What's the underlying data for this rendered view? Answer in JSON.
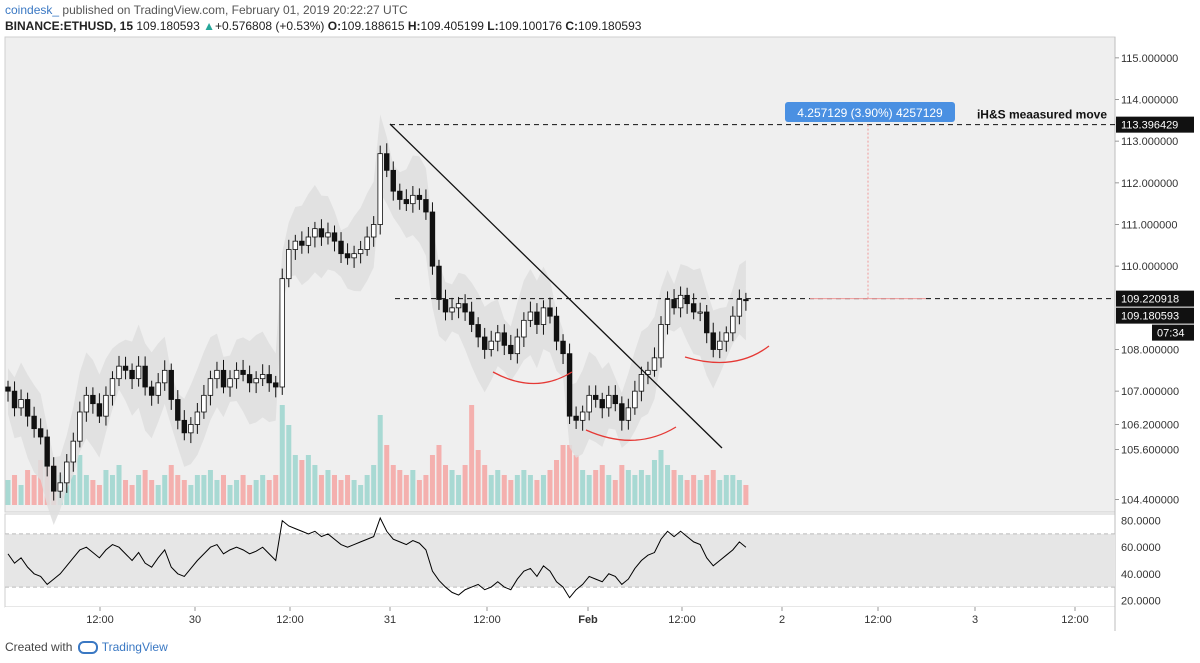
{
  "header": {
    "author": "coindesk_",
    "published": "published on TradingView.com, February 01, 2019 20:22:27 UTC",
    "symbol": "BINANCE:ETHUSD, 15",
    "last": "109.180593",
    "arrow": "▲",
    "change": "+0.576808 (+0.53%)",
    "o_label": "O:",
    "o": "109.188615",
    "h_label": "H:",
    "h": "109.405199",
    "l_label": "L:",
    "l": "109.100176",
    "c_label": "C:",
    "c": "109.180593"
  },
  "footer": {
    "created_with": "Created with",
    "brand": "TradingView"
  },
  "colors": {
    "up": "#26a69a",
    "down": "#ef5350",
    "price_line": "#000000",
    "rsi_line": "#000000",
    "band": "#dcdcdc",
    "accent": "#4a90e2"
  },
  "chart_data": {
    "type": "candlestick",
    "symbol": "BINANCE:ETHUSD",
    "interval": "15",
    "y_axis_ticks": [
      "115.000000",
      "114.000000",
      "113.000000",
      "112.000000",
      "111.000000",
      "110.000000",
      "108.000000",
      "107.000000",
      "106.200000",
      "105.600000",
      "104.400000"
    ],
    "ylim": [
      104.1,
      115.5
    ],
    "x_axis_ticks": [
      "12:00",
      "30",
      "12:00",
      "31",
      "12:00",
      "Feb",
      "12:00",
      "2",
      "12:00",
      "3",
      "12:00"
    ],
    "price_labels": {
      "measured_target": "113.396429",
      "neckline": "109.220918",
      "last_price": "109.180593",
      "countdown": "07:34"
    },
    "annotations": {
      "measure_box": "4.257129 (3.90%) 4257129",
      "measured_move_label": "iH&S meaasured move",
      "measured_target_value": 113.396429,
      "neckline_value": 109.220918
    },
    "price_series": [
      [
        0,
        107.0
      ],
      [
        1,
        106.6
      ],
      [
        2,
        106.8
      ],
      [
        3,
        106.4
      ],
      [
        4,
        106.1
      ],
      [
        5,
        105.9
      ],
      [
        6,
        105.2
      ],
      [
        7,
        104.6
      ],
      [
        8,
        104.8
      ],
      [
        9,
        105.3
      ],
      [
        10,
        105.8
      ],
      [
        11,
        106.5
      ],
      [
        12,
        106.9
      ],
      [
        13,
        106.7
      ],
      [
        14,
        106.4
      ],
      [
        15,
        106.9
      ],
      [
        16,
        107.3
      ],
      [
        17,
        107.6
      ],
      [
        18,
        107.5
      ],
      [
        19,
        107.3
      ],
      [
        20,
        107.6
      ],
      [
        21,
        107.1
      ],
      [
        22,
        106.9
      ],
      [
        23,
        107.2
      ],
      [
        24,
        107.5
      ],
      [
        25,
        106.8
      ],
      [
        26,
        106.3
      ],
      [
        27,
        106.0
      ],
      [
        28,
        106.2
      ],
      [
        29,
        106.5
      ],
      [
        30,
        106.9
      ],
      [
        31,
        107.3
      ],
      [
        32,
        107.5
      ],
      [
        33,
        107.1
      ],
      [
        34,
        107.3
      ],
      [
        35,
        107.5
      ],
      [
        36,
        107.4
      ],
      [
        37,
        107.2
      ],
      [
        38,
        107.3
      ],
      [
        39,
        107.4
      ],
      [
        40,
        107.2
      ],
      [
        41,
        107.1
      ],
      [
        42,
        109.7
      ],
      [
        43,
        110.4
      ],
      [
        44,
        110.6
      ],
      [
        45,
        110.5
      ],
      [
        46,
        110.7
      ],
      [
        47,
        110.9
      ],
      [
        48,
        110.7
      ],
      [
        49,
        110.8
      ],
      [
        50,
        110.6
      ],
      [
        51,
        110.3
      ],
      [
        52,
        110.2
      ],
      [
        53,
        110.3
      ],
      [
        54,
        110.4
      ],
      [
        55,
        110.7
      ],
      [
        56,
        111.0
      ],
      [
        57,
        112.7
      ],
      [
        58,
        112.3
      ],
      [
        59,
        111.8
      ],
      [
        60,
        111.6
      ],
      [
        61,
        111.5
      ],
      [
        62,
        111.7
      ],
      [
        63,
        111.6
      ],
      [
        64,
        111.3
      ],
      [
        65,
        110.0
      ],
      [
        66,
        109.2
      ],
      [
        67,
        108.9
      ],
      [
        68,
        109.0
      ],
      [
        69,
        109.1
      ],
      [
        70,
        108.9
      ],
      [
        71,
        108.6
      ],
      [
        72,
        108.3
      ],
      [
        73,
        108.0
      ],
      [
        74,
        108.2
      ],
      [
        75,
        108.4
      ],
      [
        76,
        108.1
      ],
      [
        77,
        107.9
      ],
      [
        78,
        108.3
      ],
      [
        79,
        108.7
      ],
      [
        80,
        108.9
      ],
      [
        81,
        108.6
      ],
      [
        82,
        109.0
      ],
      [
        83,
        108.8
      ],
      [
        84,
        108.2
      ],
      [
        85,
        107.9
      ],
      [
        86,
        106.4
      ],
      [
        87,
        106.3
      ],
      [
        88,
        106.5
      ],
      [
        89,
        106.9
      ],
      [
        90,
        106.8
      ],
      [
        91,
        106.6
      ],
      [
        92,
        106.9
      ],
      [
        93,
        106.7
      ],
      [
        94,
        106.3
      ],
      [
        95,
        106.6
      ],
      [
        96,
        107.0
      ],
      [
        97,
        107.4
      ],
      [
        98,
        107.5
      ],
      [
        99,
        107.8
      ],
      [
        100,
        108.6
      ],
      [
        101,
        109.2
      ],
      [
        102,
        109.0
      ],
      [
        103,
        109.3
      ],
      [
        104,
        109.1
      ],
      [
        105,
        108.9
      ],
      [
        106,
        108.9
      ],
      [
        107,
        108.4
      ],
      [
        108,
        108.0
      ],
      [
        109,
        108.2
      ],
      [
        110,
        108.4
      ],
      [
        111,
        108.8
      ],
      [
        112,
        109.2
      ],
      [
        113,
        109.18
      ]
    ],
    "volume_series": [
      [
        0,
        0.25
      ],
      [
        1,
        0.3
      ],
      [
        2,
        0.2
      ],
      [
        3,
        0.35
      ],
      [
        4,
        0.3
      ],
      [
        5,
        0.45
      ],
      [
        6,
        0.6
      ],
      [
        7,
        0.4
      ],
      [
        8,
        0.3
      ],
      [
        9,
        0.35
      ],
      [
        10,
        0.3
      ],
      [
        11,
        0.5
      ],
      [
        12,
        0.3
      ],
      [
        13,
        0.25
      ],
      [
        14,
        0.2
      ],
      [
        15,
        0.35
      ],
      [
        16,
        0.3
      ],
      [
        17,
        0.4
      ],
      [
        18,
        0.25
      ],
      [
        19,
        0.2
      ],
      [
        20,
        0.3
      ],
      [
        21,
        0.35
      ],
      [
        22,
        0.25
      ],
      [
        23,
        0.2
      ],
      [
        24,
        0.3
      ],
      [
        25,
        0.4
      ],
      [
        26,
        0.3
      ],
      [
        27,
        0.25
      ],
      [
        28,
        0.2
      ],
      [
        29,
        0.3
      ],
      [
        30,
        0.3
      ],
      [
        31,
        0.35
      ],
      [
        32,
        0.25
      ],
      [
        33,
        0.3
      ],
      [
        34,
        0.2
      ],
      [
        35,
        0.25
      ],
      [
        36,
        0.3
      ],
      [
        37,
        0.2
      ],
      [
        38,
        0.25
      ],
      [
        39,
        0.3
      ],
      [
        40,
        0.25
      ],
      [
        41,
        0.3
      ],
      [
        42,
        1.0
      ],
      [
        43,
        0.8
      ],
      [
        44,
        0.5
      ],
      [
        45,
        0.45
      ],
      [
        46,
        0.5
      ],
      [
        47,
        0.4
      ],
      [
        48,
        0.3
      ],
      [
        49,
        0.35
      ],
      [
        50,
        0.3
      ],
      [
        51,
        0.25
      ],
      [
        52,
        0.3
      ],
      [
        53,
        0.25
      ],
      [
        54,
        0.2
      ],
      [
        55,
        0.3
      ],
      [
        56,
        0.4
      ],
      [
        57,
        0.9
      ],
      [
        58,
        0.6
      ],
      [
        59,
        0.4
      ],
      [
        60,
        0.35
      ],
      [
        61,
        0.3
      ],
      [
        62,
        0.35
      ],
      [
        63,
        0.25
      ],
      [
        64,
        0.3
      ],
      [
        65,
        0.5
      ],
      [
        66,
        0.6
      ],
      [
        67,
        0.4
      ],
      [
        68,
        0.35
      ],
      [
        69,
        0.3
      ],
      [
        70,
        0.4
      ],
      [
        71,
        1.0
      ],
      [
        72,
        0.55
      ],
      [
        73,
        0.4
      ],
      [
        74,
        0.3
      ],
      [
        75,
        0.35
      ],
      [
        76,
        0.3
      ],
      [
        77,
        0.25
      ],
      [
        78,
        0.3
      ],
      [
        79,
        0.35
      ],
      [
        80,
        0.3
      ],
      [
        81,
        0.25
      ],
      [
        82,
        0.3
      ],
      [
        83,
        0.35
      ],
      [
        84,
        0.45
      ],
      [
        85,
        0.6
      ],
      [
        86,
        0.6
      ],
      [
        87,
        0.5
      ],
      [
        88,
        0.35
      ],
      [
        89,
        0.3
      ],
      [
        90,
        0.35
      ],
      [
        91,
        0.4
      ],
      [
        92,
        0.3
      ],
      [
        93,
        0.25
      ],
      [
        94,
        0.4
      ],
      [
        95,
        0.35
      ],
      [
        96,
        0.3
      ],
      [
        97,
        0.35
      ],
      [
        98,
        0.3
      ],
      [
        99,
        0.45
      ],
      [
        100,
        0.55
      ],
      [
        101,
        0.4
      ],
      [
        102,
        0.35
      ],
      [
        103,
        0.3
      ],
      [
        104,
        0.25
      ],
      [
        105,
        0.3
      ],
      [
        106,
        0.25
      ],
      [
        107,
        0.3
      ],
      [
        108,
        0.35
      ],
      [
        109,
        0.25
      ],
      [
        110,
        0.3
      ],
      [
        111,
        0.3
      ],
      [
        112,
        0.25
      ],
      [
        113,
        0.2
      ]
    ],
    "rsi": {
      "y_axis_ticks": [
        "80.0000",
        "60.0000",
        "40.0000",
        "20.0000"
      ],
      "ylim": [
        15,
        85
      ],
      "band": [
        30,
        70
      ],
      "series": [
        [
          0,
          55
        ],
        [
          1,
          48
        ],
        [
          2,
          52
        ],
        [
          3,
          45
        ],
        [
          4,
          40
        ],
        [
          5,
          38
        ],
        [
          6,
          32
        ],
        [
          7,
          36
        ],
        [
          8,
          40
        ],
        [
          9,
          46
        ],
        [
          10,
          52
        ],
        [
          11,
          58
        ],
        [
          12,
          60
        ],
        [
          13,
          56
        ],
        [
          14,
          52
        ],
        [
          15,
          58
        ],
        [
          16,
          62
        ],
        [
          17,
          60
        ],
        [
          18,
          55
        ],
        [
          19,
          50
        ],
        [
          20,
          56
        ],
        [
          21,
          48
        ],
        [
          22,
          45
        ],
        [
          23,
          52
        ],
        [
          24,
          58
        ],
        [
          25,
          45
        ],
        [
          26,
          40
        ],
        [
          27,
          38
        ],
        [
          28,
          44
        ],
        [
          29,
          50
        ],
        [
          30,
          55
        ],
        [
          31,
          60
        ],
        [
          32,
          62
        ],
        [
          33,
          55
        ],
        [
          34,
          58
        ],
        [
          35,
          60
        ],
        [
          36,
          58
        ],
        [
          37,
          55
        ],
        [
          38,
          57
        ],
        [
          39,
          60
        ],
        [
          40,
          55
        ],
        [
          41,
          50
        ],
        [
          42,
          80
        ],
        [
          43,
          76
        ],
        [
          44,
          74
        ],
        [
          45,
          72
        ],
        [
          46,
          70
        ],
        [
          47,
          72
        ],
        [
          48,
          68
        ],
        [
          49,
          70
        ],
        [
          50,
          66
        ],
        [
          51,
          62
        ],
        [
          52,
          60
        ],
        [
          53,
          62
        ],
        [
          54,
          64
        ],
        [
          55,
          66
        ],
        [
          56,
          68
        ],
        [
          57,
          82
        ],
        [
          58,
          72
        ],
        [
          59,
          66
        ],
        [
          60,
          64
        ],
        [
          61,
          62
        ],
        [
          62,
          65
        ],
        [
          63,
          63
        ],
        [
          64,
          58
        ],
        [
          65,
          42
        ],
        [
          66,
          35
        ],
        [
          67,
          30
        ],
        [
          68,
          26
        ],
        [
          69,
          24
        ],
        [
          70,
          28
        ],
        [
          71,
          30
        ],
        [
          72,
          32
        ],
        [
          73,
          28
        ],
        [
          74,
          30
        ],
        [
          75,
          34
        ],
        [
          76,
          30
        ],
        [
          77,
          28
        ],
        [
          78,
          36
        ],
        [
          79,
          42
        ],
        [
          80,
          44
        ],
        [
          81,
          38
        ],
        [
          82,
          46
        ],
        [
          83,
          42
        ],
        [
          84,
          34
        ],
        [
          85,
          30
        ],
        [
          86,
          22
        ],
        [
          87,
          28
        ],
        [
          88,
          32
        ],
        [
          89,
          38
        ],
        [
          90,
          36
        ],
        [
          91,
          34
        ],
        [
          92,
          40
        ],
        [
          93,
          38
        ],
        [
          94,
          32
        ],
        [
          95,
          36
        ],
        [
          96,
          44
        ],
        [
          97,
          50
        ],
        [
          98,
          54
        ],
        [
          99,
          56
        ],
        [
          100,
          66
        ],
        [
          101,
          72
        ],
        [
          102,
          68
        ],
        [
          103,
          72
        ],
        [
          104,
          68
        ],
        [
          105,
          64
        ],
        [
          106,
          62
        ],
        [
          107,
          52
        ],
        [
          108,
          46
        ],
        [
          109,
          50
        ],
        [
          110,
          54
        ],
        [
          111,
          58
        ],
        [
          112,
          64
        ],
        [
          113,
          60
        ]
      ]
    }
  }
}
